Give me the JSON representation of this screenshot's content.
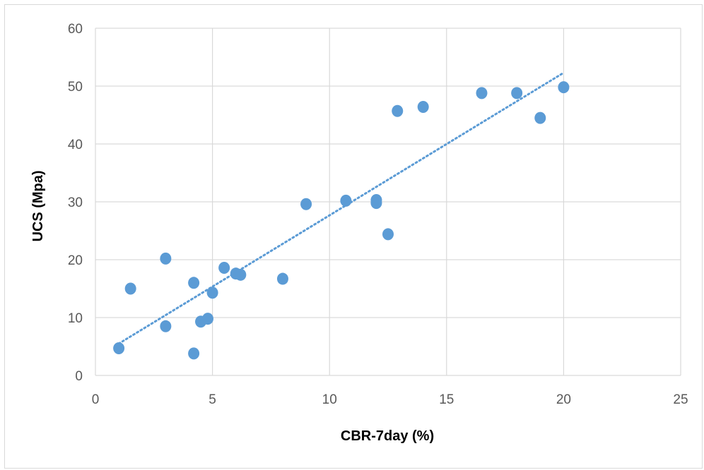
{
  "chart_data": {
    "type": "scatter",
    "title": "",
    "xlabel": "CBR-7day (%)",
    "ylabel": "UCS (Mpa)",
    "xlim": [
      0,
      25
    ],
    "ylim": [
      0,
      60
    ],
    "x_ticks": [
      0,
      5,
      10,
      15,
      20,
      25
    ],
    "y_ticks": [
      0,
      10,
      20,
      30,
      40,
      50,
      60
    ],
    "grid": true,
    "legend": "none",
    "series": [
      {
        "color": "#5b9bd5",
        "points": [
          {
            "x": 1.0,
            "y": 4.7
          },
          {
            "x": 1.5,
            "y": 15.0
          },
          {
            "x": 3.0,
            "y": 20.2
          },
          {
            "x": 3.0,
            "y": 8.5
          },
          {
            "x": 4.2,
            "y": 16.0
          },
          {
            "x": 4.2,
            "y": 3.8
          },
          {
            "x": 4.5,
            "y": 9.3
          },
          {
            "x": 4.8,
            "y": 9.8
          },
          {
            "x": 5.0,
            "y": 14.3
          },
          {
            "x": 5.5,
            "y": 18.6
          },
          {
            "x": 6.0,
            "y": 17.6
          },
          {
            "x": 6.2,
            "y": 17.4
          },
          {
            "x": 8.0,
            "y": 16.7
          },
          {
            "x": 9.0,
            "y": 29.6
          },
          {
            "x": 10.7,
            "y": 30.2
          },
          {
            "x": 12.0,
            "y": 30.3
          },
          {
            "x": 12.0,
            "y": 29.8
          },
          {
            "x": 12.5,
            "y": 24.4
          },
          {
            "x": 12.9,
            "y": 45.7
          },
          {
            "x": 14.0,
            "y": 46.4
          },
          {
            "x": 16.5,
            "y": 48.8
          },
          {
            "x": 18.0,
            "y": 48.8
          },
          {
            "x": 19.0,
            "y": 44.5
          },
          {
            "x": 20.0,
            "y": 49.8
          }
        ]
      }
    ],
    "trendline": {
      "style": "dotted",
      "color": "#5b9bd5",
      "from": {
        "x": 1.0,
        "y": 5.5
      },
      "to": {
        "x": 20.0,
        "y": 52.3
      }
    }
  }
}
